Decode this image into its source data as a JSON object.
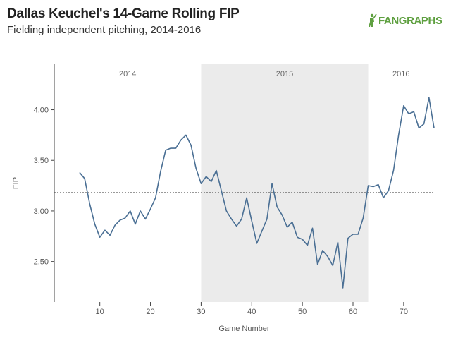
{
  "header": {
    "title": "Dallas Keuchel's 14-Game Rolling FIP",
    "subtitle": "Fielding independent pitching, 2014-2016",
    "logo_text": "FANGRAPHS"
  },
  "colors": {
    "line": "#4a6f94",
    "band": "#ebebeb",
    "axis": "#444444",
    "reference_line": "#333333",
    "logo": "#5fa041"
  },
  "chart_data": {
    "type": "line",
    "title": "Dallas Keuchel's 14-Game Rolling FIP",
    "subtitle": "Fielding independent pitching, 2014-2016",
    "xlabel": "Game Number",
    "ylabel": "FIP",
    "xlim": [
      1,
      76
    ],
    "ylim": [
      2.1,
      4.45
    ],
    "x_ticks": [
      10,
      20,
      30,
      40,
      50,
      60,
      70
    ],
    "y_ticks": [
      2.5,
      3.0,
      3.5,
      4.0
    ],
    "y_tick_labels": [
      "2.50",
      "3.00",
      "3.50",
      "4.00"
    ],
    "grid": false,
    "reference_line": {
      "y": 3.18,
      "style": "dotted"
    },
    "seasons": [
      {
        "label": "2014",
        "start": 1,
        "end": 30,
        "shaded": false
      },
      {
        "label": "2015",
        "start": 30,
        "end": 63,
        "shaded": true
      },
      {
        "label": "2016",
        "start": 63,
        "end": 76,
        "shaded": false
      }
    ],
    "series": [
      {
        "x": [
          6,
          7,
          8,
          9,
          10,
          11,
          12,
          13,
          14,
          15,
          16,
          17,
          18,
          19,
          20,
          21,
          22,
          23,
          24,
          25,
          26,
          27,
          28,
          29,
          30,
          31,
          32,
          33,
          34,
          35,
          36,
          37,
          38,
          39,
          40,
          41,
          42,
          43,
          44,
          45,
          46,
          47,
          48,
          49,
          50,
          51,
          52,
          53,
          54,
          55,
          56,
          57,
          58,
          59,
          60,
          61,
          62,
          63,
          64,
          65,
          66,
          67,
          68,
          69,
          70,
          71,
          72,
          73,
          74,
          75,
          76
        ],
        "y": [
          3.38,
          3.32,
          3.07,
          2.87,
          2.74,
          2.81,
          2.76,
          2.86,
          2.91,
          2.93,
          3.0,
          2.87,
          3.0,
          2.92,
          3.02,
          3.13,
          3.39,
          3.6,
          3.62,
          3.62,
          3.7,
          3.75,
          3.65,
          3.42,
          3.27,
          3.34,
          3.29,
          3.4,
          3.2,
          3.0,
          2.92,
          2.85,
          2.92,
          3.13,
          2.9,
          2.68,
          2.8,
          2.92,
          3.27,
          3.04,
          2.96,
          2.84,
          2.89,
          2.74,
          2.72,
          2.66,
          2.83,
          2.47,
          2.61,
          2.55,
          2.46,
          2.69,
          2.24,
          2.73,
          2.77,
          2.77,
          2.93,
          3.25,
          3.24,
          3.26,
          3.13,
          3.2,
          3.4,
          3.75,
          4.04,
          3.96,
          3.98,
          3.82,
          3.86,
          4.12,
          3.82
        ]
      }
    ]
  }
}
